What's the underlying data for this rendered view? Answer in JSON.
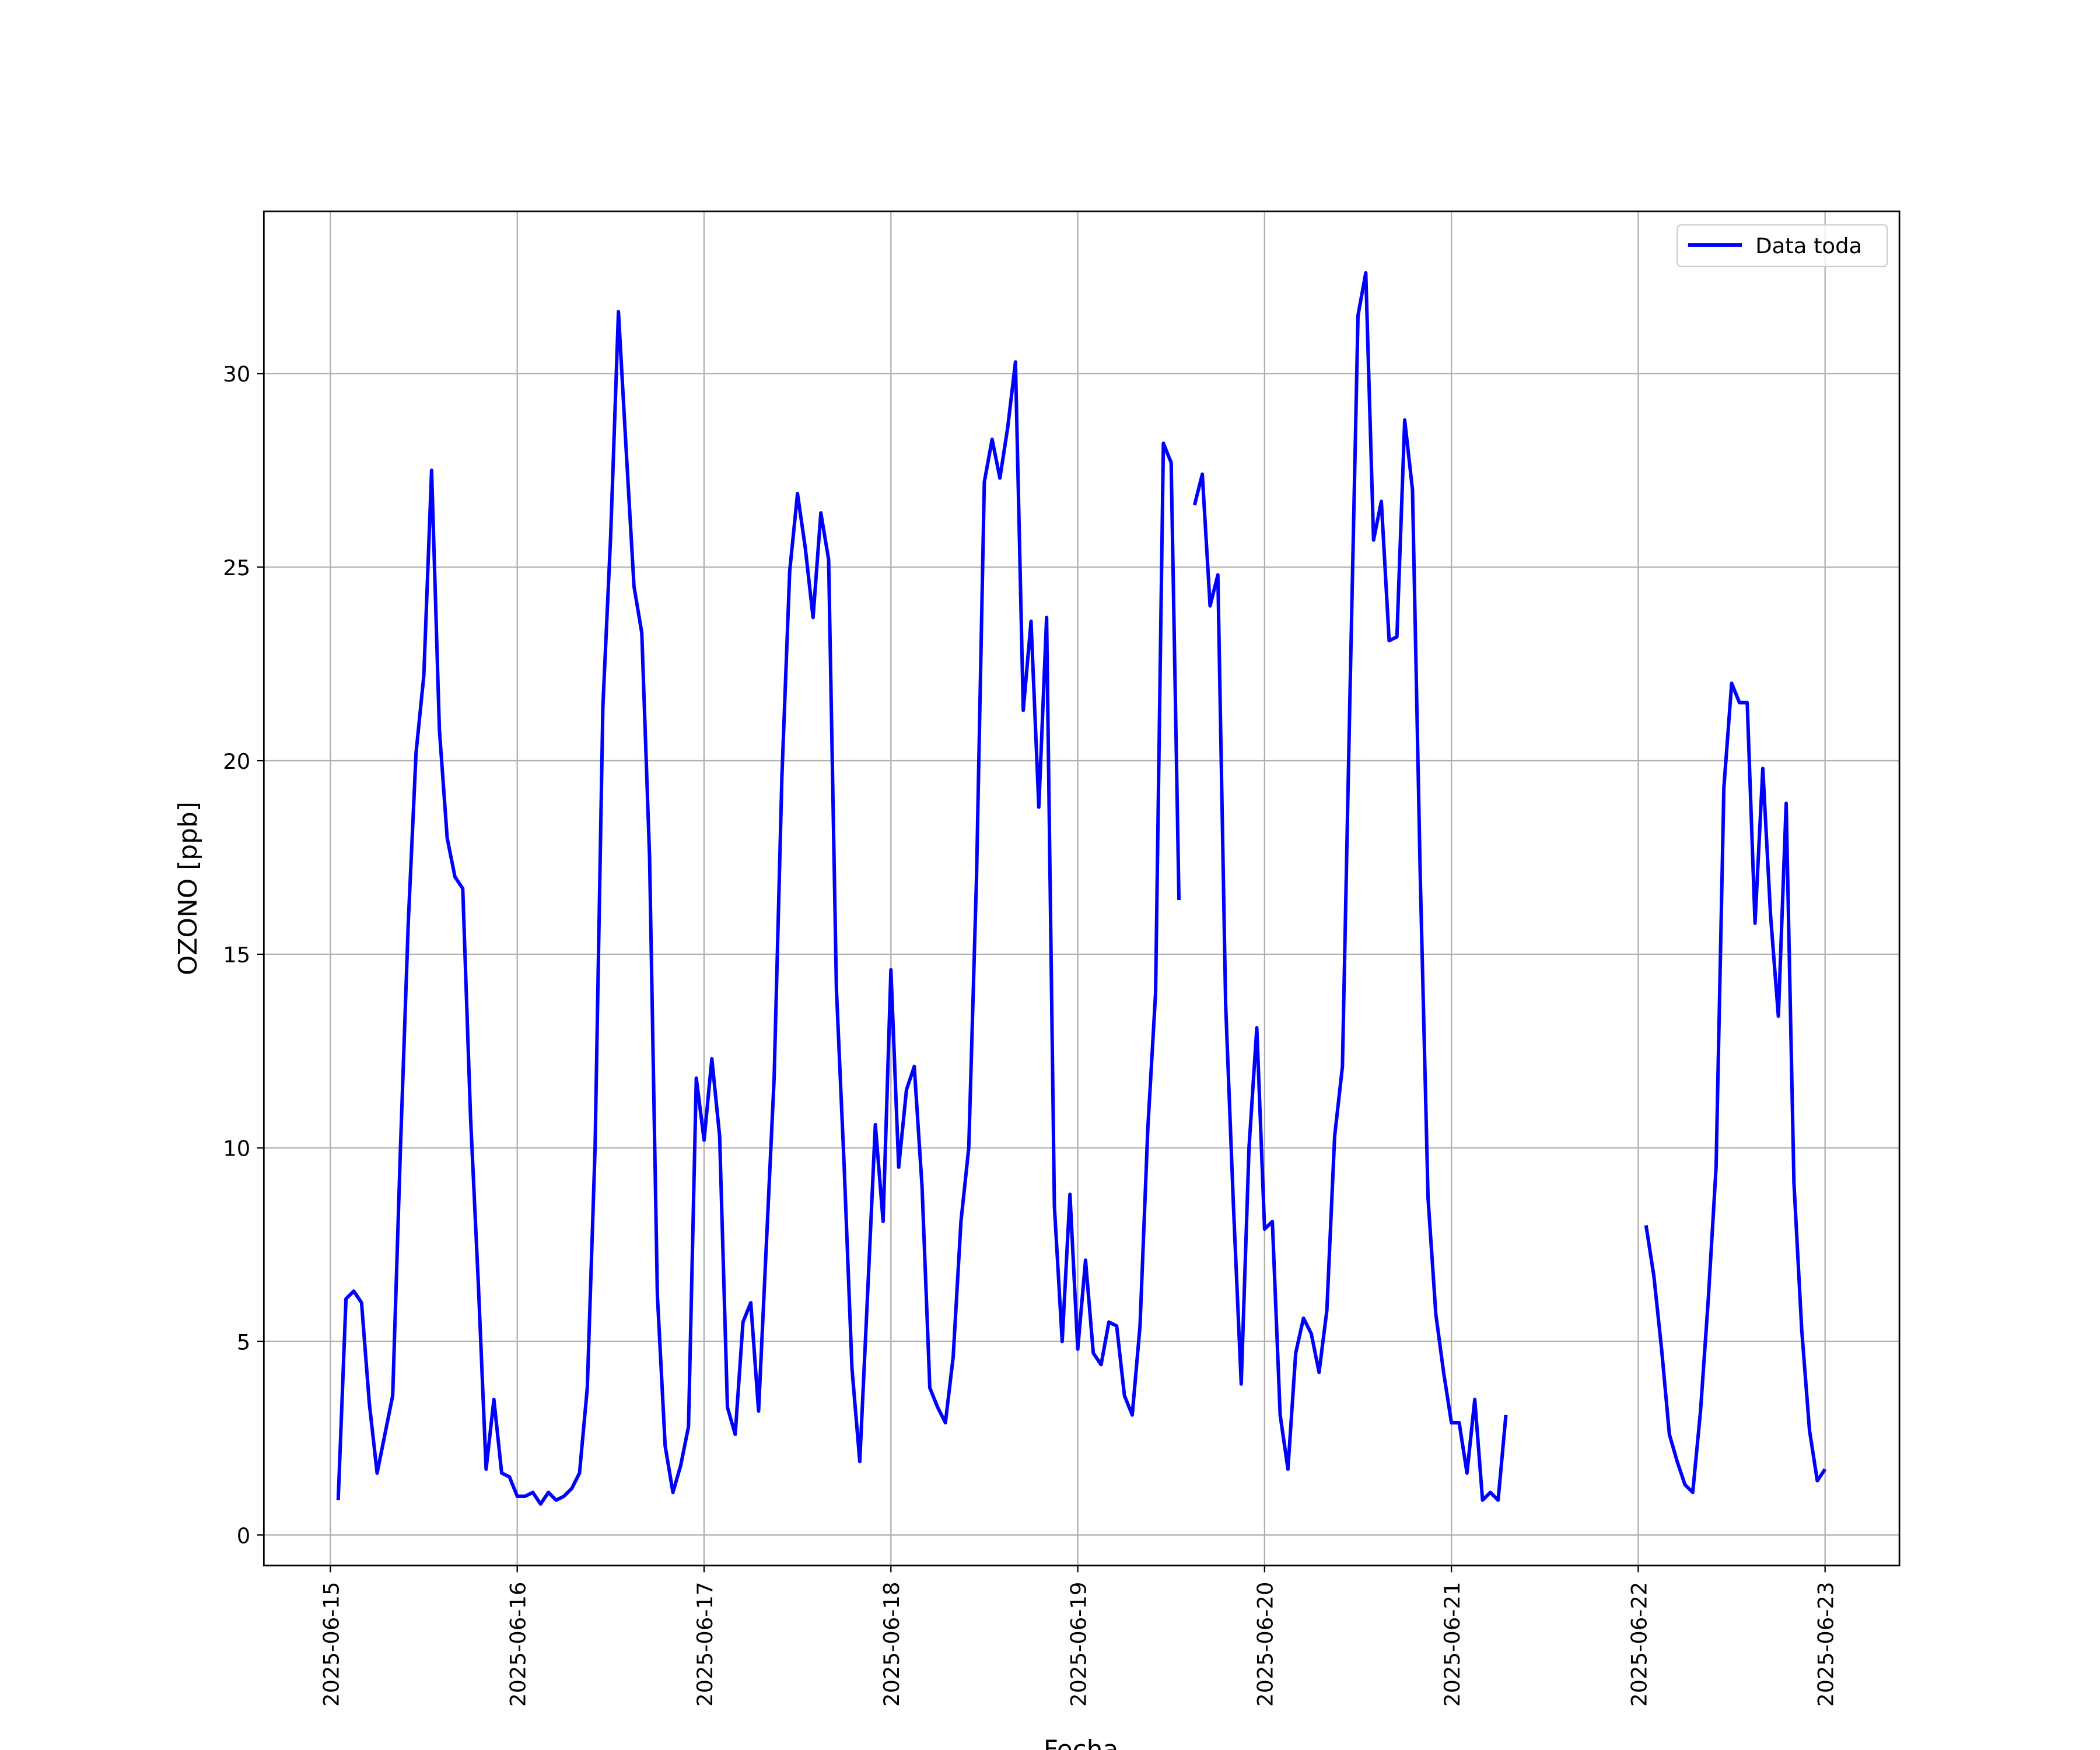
{
  "chart_data": {
    "type": "line",
    "xlabel": "Fecha",
    "ylabel": "OZONO [ppb]",
    "x": [
      "2025-06-15 01:00",
      "2025-06-15 02:00",
      "2025-06-15 03:00",
      "2025-06-15 04:00",
      "2025-06-15 05:00",
      "2025-06-15 06:00",
      "2025-06-15 07:00",
      "2025-06-15 08:00",
      "2025-06-15 09:00",
      "2025-06-15 10:00",
      "2025-06-15 11:00",
      "2025-06-15 12:00",
      "2025-06-15 13:00",
      "2025-06-15 14:00",
      "2025-06-15 15:00",
      "2025-06-15 16:00",
      "2025-06-15 17:00",
      "2025-06-15 18:00",
      "2025-06-15 19:00",
      "2025-06-15 20:00",
      "2025-06-15 21:00",
      "2025-06-15 22:00",
      "2025-06-15 23:00",
      "2025-06-16 00:00",
      "2025-06-16 01:00",
      "2025-06-16 02:00",
      "2025-06-16 03:00",
      "2025-06-16 04:00",
      "2025-06-16 05:00",
      "2025-06-16 06:00",
      "2025-06-16 07:00",
      "2025-06-16 08:00",
      "2025-06-16 09:00",
      "2025-06-16 10:00",
      "2025-06-16 11:00",
      "2025-06-16 12:00",
      "2025-06-16 13:00",
      "2025-06-16 14:00",
      "2025-06-16 15:00",
      "2025-06-16 16:00",
      "2025-06-16 17:00",
      "2025-06-16 18:00",
      "2025-06-16 19:00",
      "2025-06-16 20:00",
      "2025-06-16 21:00",
      "2025-06-16 22:00",
      "2025-06-16 23:00",
      "2025-06-17 00:00",
      "2025-06-17 01:00",
      "2025-06-17 02:00",
      "2025-06-17 03:00",
      "2025-06-17 04:00",
      "2025-06-17 05:00",
      "2025-06-17 06:00",
      "2025-06-17 07:00",
      "2025-06-17 08:00",
      "2025-06-17 09:00",
      "2025-06-17 10:00",
      "2025-06-17 11:00",
      "2025-06-17 12:00",
      "2025-06-17 13:00",
      "2025-06-17 14:00",
      "2025-06-17 15:00",
      "2025-06-17 16:00",
      "2025-06-17 17:00",
      "2025-06-17 18:00",
      "2025-06-17 19:00",
      "2025-06-17 20:00",
      "2025-06-17 21:00",
      "2025-06-17 22:00",
      "2025-06-17 23:00",
      "2025-06-18 00:00",
      "2025-06-18 01:00",
      "2025-06-18 02:00",
      "2025-06-18 03:00",
      "2025-06-18 04:00",
      "2025-06-18 05:00",
      "2025-06-18 06:00",
      "2025-06-18 07:00",
      "2025-06-18 08:00",
      "2025-06-18 09:00",
      "2025-06-18 10:00",
      "2025-06-18 11:00",
      "2025-06-18 12:00",
      "2025-06-18 13:00",
      "2025-06-18 14:00",
      "2025-06-18 15:00",
      "2025-06-18 16:00",
      "2025-06-18 17:00",
      "2025-06-18 18:00",
      "2025-06-18 19:00",
      "2025-06-18 20:00",
      "2025-06-18 21:00",
      "2025-06-18 22:00",
      "2025-06-18 23:00",
      "2025-06-19 00:00",
      "2025-06-19 01:00",
      "2025-06-19 02:00",
      "2025-06-19 03:00",
      "2025-06-19 04:00",
      "2025-06-19 05:00",
      "2025-06-19 06:00",
      "2025-06-19 07:00",
      "2025-06-19 08:00",
      "2025-06-19 09:00",
      "2025-06-19 10:00",
      "2025-06-19 11:00",
      "2025-06-19 12:00",
      "2025-06-19 13:00",
      "2025-06-19 14:00",
      "2025-06-19 15:00",
      "2025-06-19 16:00",
      "2025-06-19 17:00",
      "2025-06-19 18:00",
      "2025-06-19 19:00",
      "2025-06-19 20:00",
      "2025-06-19 21:00",
      "2025-06-19 22:00",
      "2025-06-19 23:00",
      "2025-06-20 00:00",
      "2025-06-20 01:00",
      "2025-06-20 02:00",
      "2025-06-20 03:00",
      "2025-06-20 04:00",
      "2025-06-20 05:00",
      "2025-06-20 06:00",
      "2025-06-20 07:00",
      "2025-06-20 08:00",
      "2025-06-20 09:00",
      "2025-06-20 10:00",
      "2025-06-20 11:00",
      "2025-06-20 12:00",
      "2025-06-20 13:00",
      "2025-06-20 14:00",
      "2025-06-20 15:00",
      "2025-06-20 16:00",
      "2025-06-20 17:00",
      "2025-06-20 18:00",
      "2025-06-20 19:00",
      "2025-06-20 20:00",
      "2025-06-20 21:00",
      "2025-06-20 22:00",
      "2025-06-20 23:00",
      "2025-06-21 00:00",
      "2025-06-21 01:00",
      "2025-06-21 02:00",
      "2025-06-21 03:00",
      "2025-06-21 04:00",
      "2025-06-21 05:00",
      "2025-06-21 06:00",
      "2025-06-21 07:00",
      "2025-06-21 08:00",
      "2025-06-21 09:00",
      "2025-06-21 10:00",
      "2025-06-21 11:00",
      "2025-06-21 12:00",
      "2025-06-21 13:00",
      "2025-06-21 14:00",
      "2025-06-21 15:00",
      "2025-06-21 16:00",
      "2025-06-21 17:00",
      "2025-06-21 18:00",
      "2025-06-21 19:00",
      "2025-06-21 20:00",
      "2025-06-21 21:00",
      "2025-06-21 22:00",
      "2025-06-21 23:00",
      "2025-06-22 00:00",
      "2025-06-22 01:00",
      "2025-06-22 02:00",
      "2025-06-22 03:00",
      "2025-06-22 04:00",
      "2025-06-22 05:00",
      "2025-06-22 06:00",
      "2025-06-22 07:00",
      "2025-06-22 08:00",
      "2025-06-22 09:00",
      "2025-06-22 10:00",
      "2025-06-22 11:00",
      "2025-06-22 12:00",
      "2025-06-22 13:00",
      "2025-06-22 14:00",
      "2025-06-22 15:00",
      "2025-06-22 16:00",
      "2025-06-22 17:00",
      "2025-06-22 18:00",
      "2025-06-22 19:00",
      "2025-06-22 20:00",
      "2025-06-22 21:00",
      "2025-06-22 22:00",
      "2025-06-22 23:00",
      "2025-06-23 00:00"
    ],
    "series": [
      {
        "name": "Data toda",
        "color": "#0000ff",
        "values": [
          0.9,
          6.1,
          6.3,
          6.0,
          3.4,
          1.6,
          2.6,
          3.6,
          10.0,
          15.8,
          20.2,
          22.2,
          27.5,
          20.8,
          18.0,
          17.0,
          16.7,
          10.8,
          6.5,
          1.7,
          3.5,
          1.6,
          1.5,
          1.0,
          1.0,
          1.1,
          0.8,
          1.1,
          0.9,
          1.0,
          1.2,
          1.6,
          3.8,
          10.0,
          21.4,
          25.8,
          31.6,
          28.0,
          24.5,
          23.3,
          17.5,
          6.2,
          2.3,
          1.1,
          1.8,
          2.8,
          11.8,
          10.2,
          12.3,
          10.3,
          3.3,
          2.6,
          5.5,
          6.0,
          3.2,
          7.5,
          11.8,
          19.6,
          24.9,
          26.9,
          25.5,
          23.7,
          26.4,
          25.2,
          14.1,
          9.5,
          4.3,
          1.9,
          6.2,
          10.6,
          8.1,
          14.6,
          9.5,
          11.5,
          12.1,
          9.0,
          3.8,
          3.3,
          2.9,
          4.6,
          8.1,
          10.0,
          17.0,
          27.2,
          28.3,
          27.3,
          28.6,
          30.3,
          21.3,
          23.6,
          18.8,
          23.7,
          8.5,
          5.0,
          8.8,
          4.8,
          7.1,
          4.7,
          4.4,
          5.5,
          5.4,
          3.6,
          3.1,
          5.4,
          10.5,
          14.0,
          28.2,
          27.7,
          16.4,
          null,
          26.6,
          27.4,
          24.0,
          24.8,
          13.7,
          8.5,
          3.9,
          10.0,
          13.1,
          7.9,
          8.1,
          3.1,
          1.7,
          4.7,
          5.6,
          5.2,
          4.2,
          5.8,
          10.3,
          12.1,
          22.0,
          31.5,
          32.6,
          25.7,
          26.7,
          23.1,
          23.2,
          28.8,
          27.0,
          17.0,
          8.7,
          5.7,
          4.2,
          2.9,
          2.9,
          1.6,
          3.5,
          0.9,
          1.1,
          0.9,
          3.1,
          null,
          null,
          null,
          null,
          null,
          null,
          null,
          null,
          null,
          null,
          null,
          null,
          null,
          null,
          null,
          null,
          null,
          8.0,
          6.7,
          4.8,
          2.6,
          1.9,
          1.3,
          1.1,
          3.2,
          6.1,
          9.5,
          19.3,
          22.0,
          21.5,
          21.5,
          15.8,
          19.8,
          16.0,
          13.4,
          18.9,
          9.1,
          5.3,
          2.7,
          1.4,
          1.7
        ]
      }
    ],
    "xlim": [
      "2025-06-14 15:27",
      "2025-06-23 09:33"
    ],
    "xticks": [
      "2025-06-15",
      "2025-06-16",
      "2025-06-17",
      "2025-06-18",
      "2025-06-19",
      "2025-06-20",
      "2025-06-21",
      "2025-06-22",
      "2025-06-23"
    ],
    "ylim": [
      -0.79,
      34.19
    ],
    "yticks": [
      0,
      5,
      10,
      15,
      20,
      25,
      30
    ],
    "grid": true,
    "legend": "upper right"
  }
}
